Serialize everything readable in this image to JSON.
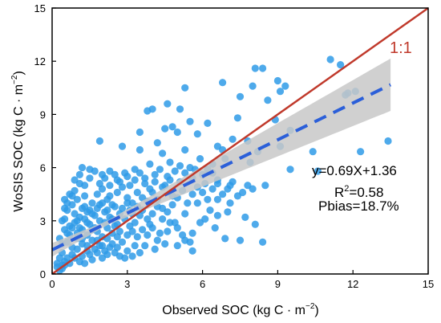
{
  "chart_data": {
    "type": "scatter",
    "xlabel": "Observed SOC (kg C · m",
    "xlabel_sup": "−2",
    "xlabel_tail": ")",
    "ylabel": "WoSIS SOC (kg C · m",
    "ylabel_sup": "−2",
    "ylabel_tail": ")",
    "xlim": [
      0,
      15
    ],
    "ylim": [
      0,
      15
    ],
    "xticks": [
      "0",
      "3",
      "6",
      "9",
      "12",
      "15"
    ],
    "yticks": [
      "0",
      "3",
      "6",
      "9",
      "12",
      "15"
    ],
    "grid": false,
    "identity_label": "1:1",
    "regression": {
      "slope": 0.69,
      "intercept": 1.36,
      "x_range": [
        0,
        13.5
      ]
    },
    "stats": {
      "equation": "y=0.69X+1.36",
      "r2_prefix": "R",
      "r2_sup": "2",
      "r2_value": "=0.58",
      "pbias": "Pbias=18.7%"
    },
    "colors": {
      "points": "#2f9be8",
      "identity_line": "#c0392b",
      "regression_line": "#2b5fd9",
      "confidence_band": "#c8c8c8",
      "identity_label": "#c0392b"
    },
    "points": [
      [
        11.1,
        12.1
      ],
      [
        11.5,
        11.8
      ],
      [
        11.8,
        10.2
      ],
      [
        11.7,
        10.1
      ],
      [
        13.4,
        7.5
      ],
      [
        12.3,
        6.9
      ],
      [
        12.1,
        10.3
      ],
      [
        8.1,
        11.6
      ],
      [
        8.4,
        11.6
      ],
      [
        9.0,
        10.9
      ],
      [
        9.3,
        10.6
      ],
      [
        9.1,
        10.3
      ],
      [
        8.0,
        10.6
      ],
      [
        7.5,
        10.0
      ],
      [
        6.8,
        10.8
      ],
      [
        5.3,
        10.5
      ],
      [
        4.0,
        9.3
      ],
      [
        3.8,
        9.2
      ],
      [
        4.6,
        9.6
      ],
      [
        5.1,
        9.3
      ],
      [
        7.4,
        8.8
      ],
      [
        8.6,
        9.8
      ],
      [
        8.9,
        8.7
      ],
      [
        9.5,
        8.1
      ],
      [
        7.8,
        7.5
      ],
      [
        6.6,
        7.2
      ],
      [
        6.8,
        7.0
      ],
      [
        7.2,
        7.6
      ],
      [
        5.8,
        7.9
      ],
      [
        5.0,
        8.0
      ],
      [
        4.5,
        8.2
      ],
      [
        5.5,
        8.6
      ],
      [
        6.2,
        8.5
      ],
      [
        4.8,
        8.3
      ],
      [
        3.5,
        8.0
      ],
      [
        1.9,
        7.5
      ],
      [
        2.8,
        7.2
      ],
      [
        3.5,
        7.0
      ],
      [
        4.2,
        7.4
      ],
      [
        4.4,
        6.8
      ],
      [
        5.3,
        7.0
      ],
      [
        5.9,
        6.5
      ],
      [
        6.4,
        6.2
      ],
      [
        6.9,
        6.5
      ],
      [
        7.9,
        6.3
      ],
      [
        8.5,
        5.0
      ],
      [
        9.5,
        5.9
      ],
      [
        9.1,
        7.2
      ],
      [
        8.2,
        6.9
      ],
      [
        10.6,
        5.8
      ],
      [
        10.4,
        6.9
      ],
      [
        1.2,
        6.0
      ],
      [
        1.5,
        5.9
      ],
      [
        2.0,
        5.6
      ],
      [
        2.3,
        5.8
      ],
      [
        2.6,
        5.3
      ],
      [
        3.0,
        5.5
      ],
      [
        3.3,
        5.9
      ],
      [
        3.7,
        5.4
      ],
      [
        4.1,
        5.6
      ],
      [
        4.6,
        5.5
      ],
      [
        5.1,
        5.2
      ],
      [
        5.6,
        5.4
      ],
      [
        6.1,
        5.1
      ],
      [
        6.6,
        5.3
      ],
      [
        7.1,
        5.0
      ],
      [
        7.6,
        4.6
      ],
      [
        3.9,
        6.2
      ],
      [
        4.7,
        6.3
      ],
      [
        5.5,
        6.0
      ],
      [
        6.2,
        5.9
      ],
      [
        6.6,
        4.2
      ],
      [
        7.1,
        4.0
      ],
      [
        7.7,
        3.2
      ],
      [
        7.5,
        1.9
      ],
      [
        8.4,
        1.8
      ],
      [
        8.1,
        2.8
      ],
      [
        6.5,
        2.6
      ],
      [
        6.9,
        2.0
      ],
      [
        6.3,
        3.6
      ],
      [
        5.8,
        4.0
      ],
      [
        5.3,
        3.4
      ],
      [
        4.9,
        2.9
      ],
      [
        5.6,
        2.3
      ],
      [
        5.5,
        1.8
      ],
      [
        5.6,
        1.3
      ],
      [
        4.6,
        2.4
      ],
      [
        4.2,
        1.9
      ],
      [
        3.9,
        2.8
      ],
      [
        4.4,
        3.7
      ],
      [
        4.8,
        4.4
      ],
      [
        3.3,
        1.6
      ],
      [
        2.6,
        1.5
      ],
      [
        2.2,
        1.1
      ],
      [
        2.9,
        0.9
      ],
      [
        3.5,
        1.2
      ],
      [
        0.5,
        4.2
      ],
      [
        0.7,
        4.5
      ],
      [
        0.9,
        4.7
      ],
      [
        1.1,
        5.1
      ],
      [
        1.3,
        4.4
      ],
      [
        0.6,
        3.6
      ],
      [
        0.8,
        3.9
      ],
      [
        1.0,
        4.2
      ],
      [
        1.2,
        3.7
      ],
      [
        1.4,
        3.5
      ],
      [
        1.6,
        4.0
      ],
      [
        1.8,
        4.5
      ],
      [
        2.0,
        4.8
      ],
      [
        2.2,
        4.2
      ],
      [
        2.4,
        3.9
      ],
      [
        2.6,
        4.6
      ],
      [
        2.8,
        4.9
      ],
      [
        3.0,
        4.3
      ],
      [
        3.2,
        4.0
      ],
      [
        3.4,
        4.6
      ],
      [
        3.6,
        3.6
      ],
      [
        3.8,
        4.1
      ],
      [
        4.0,
        4.6
      ],
      [
        4.2,
        4.2
      ],
      [
        4.4,
        4.9
      ],
      [
        0.5,
        2.5
      ],
      [
        0.7,
        2.2
      ],
      [
        0.9,
        2.9
      ],
      [
        1.1,
        2.6
      ],
      [
        1.3,
        3.1
      ],
      [
        1.5,
        2.8
      ],
      [
        1.7,
        3.3
      ],
      [
        1.9,
        3.0
      ],
      [
        2.1,
        3.5
      ],
      [
        2.3,
        3.2
      ],
      [
        2.5,
        2.7
      ],
      [
        2.7,
        3.4
      ],
      [
        2.9,
        3.1
      ],
      [
        3.1,
        3.6
      ],
      [
        3.3,
        2.9
      ],
      [
        3.5,
        3.3
      ],
      [
        0.6,
        1.8
      ],
      [
        0.8,
        1.5
      ],
      [
        1.0,
        2.0
      ],
      [
        1.2,
        1.7
      ],
      [
        1.4,
        2.2
      ],
      [
        1.6,
        1.9
      ],
      [
        1.8,
        2.4
      ],
      [
        2.0,
        2.1
      ],
      [
        2.2,
        2.6
      ],
      [
        2.4,
        2.3
      ],
      [
        0.4,
        1.2
      ],
      [
        0.6,
        0.9
      ],
      [
        0.8,
        1.1
      ],
      [
        1.0,
        1.4
      ],
      [
        1.2,
        1.0
      ],
      [
        1.4,
        1.3
      ],
      [
        1.6,
        0.8
      ],
      [
        1.8,
        1.2
      ],
      [
        2.0,
        0.9
      ],
      [
        0.2,
        0.4
      ],
      [
        0.3,
        0.2
      ],
      [
        0.4,
        0.5
      ],
      [
        0.5,
        3.1
      ],
      [
        0.9,
        3.4
      ],
      [
        1.3,
        3.8
      ],
      [
        1.7,
        2.6
      ],
      [
        2.1,
        2.9
      ],
      [
        2.5,
        3.8
      ],
      [
        0.7,
        2.7
      ],
      [
        1.1,
        3.2
      ],
      [
        1.5,
        3.6
      ],
      [
        1.9,
        3.9
      ],
      [
        2.3,
        4.4
      ],
      [
        2.7,
        2.4
      ],
      [
        3.1,
        2.7
      ],
      [
        0.3,
        2.0
      ],
      [
        0.4,
        3.0
      ],
      [
        0.5,
        3.7
      ],
      [
        0.6,
        4.0
      ],
      [
        0.8,
        4.4
      ],
      [
        1.0,
        3.0
      ],
      [
        1.2,
        2.5
      ],
      [
        1.4,
        2.9
      ],
      [
        1.6,
        3.4
      ],
      [
        1.8,
        3.7
      ],
      [
        2.0,
        4.0
      ],
      [
        2.2,
        3.6
      ],
      [
        2.4,
        3.1
      ],
      [
        2.6,
        2.8
      ],
      [
        2.8,
        3.7
      ],
      [
        3.0,
        4.0
      ],
      [
        3.2,
        3.4
      ],
      [
        3.4,
        3.8
      ],
      [
        3.6,
        4.3
      ],
      [
        3.8,
        3.1
      ],
      [
        4.0,
        3.4
      ],
      [
        4.2,
        3.8
      ],
      [
        4.4,
        3.1
      ],
      [
        4.6,
        3.5
      ],
      [
        4.8,
        3.9
      ],
      [
        5.0,
        4.3
      ],
      [
        5.2,
        4.7
      ],
      [
        5.4,
        4.0
      ],
      [
        5.6,
        4.5
      ],
      [
        5.8,
        4.9
      ],
      [
        6.0,
        4.6
      ],
      [
        6.2,
        4.2
      ],
      [
        6.4,
        4.8
      ],
      [
        6.6,
        5.1
      ],
      [
        6.8,
        4.5
      ],
      [
        7.0,
        4.8
      ],
      [
        7.2,
        5.2
      ],
      [
        7.4,
        4.4
      ],
      [
        7.8,
        5.0
      ],
      [
        8.0,
        4.8
      ],
      [
        0.9,
        5.3
      ],
      [
        1.1,
        5.6
      ],
      [
        1.3,
        5.0
      ],
      [
        1.5,
        5.4
      ],
      [
        1.7,
        5.8
      ],
      [
        1.9,
        5.1
      ],
      [
        2.1,
        5.4
      ],
      [
        2.3,
        5.0
      ],
      [
        2.5,
        5.6
      ],
      [
        2.7,
        5.2
      ],
      [
        2.9,
        5.7
      ],
      [
        3.1,
        5.0
      ],
      [
        3.3,
        5.3
      ],
      [
        3.5,
        5.7
      ],
      [
        3.7,
        5.1
      ],
      [
        3.9,
        4.8
      ],
      [
        4.1,
        5.2
      ],
      [
        4.3,
        5.9
      ],
      [
        4.5,
        5.0
      ],
      [
        4.7,
        5.3
      ],
      [
        4.9,
        5.8
      ],
      [
        5.1,
        6.1
      ],
      [
        5.3,
        5.7
      ],
      [
        5.7,
        5.9
      ],
      [
        6.0,
        5.6
      ],
      [
        6.4,
        5.7
      ],
      [
        0.4,
        1.7
      ],
      [
        0.6,
        2.3
      ],
      [
        0.8,
        2.6
      ],
      [
        1.0,
        2.3
      ],
      [
        1.2,
        2.0
      ],
      [
        1.4,
        1.6
      ],
      [
        1.6,
        2.5
      ],
      [
        1.8,
        1.9
      ],
      [
        2.0,
        1.6
      ],
      [
        2.2,
        2.0
      ],
      [
        2.4,
        1.7
      ],
      [
        2.6,
        2.1
      ],
      [
        2.8,
        1.8
      ],
      [
        3.0,
        2.2
      ],
      [
        3.2,
        2.4
      ],
      [
        3.4,
        2.1
      ],
      [
        3.6,
        2.5
      ],
      [
        3.8,
        2.2
      ],
      [
        4.0,
        2.6
      ],
      [
        4.3,
        2.3
      ],
      [
        4.7,
        2.9
      ],
      [
        5.0,
        2.6
      ],
      [
        5.2,
        2.2
      ],
      [
        5.9,
        2.9
      ],
      [
        6.1,
        3.1
      ],
      [
        6.6,
        3.3
      ],
      [
        7.0,
        3.5
      ],
      [
        0.5,
        0.7
      ],
      [
        0.7,
        0.6
      ],
      [
        0.9,
        0.9
      ],
      [
        1.1,
        0.7
      ],
      [
        1.3,
        0.6
      ],
      [
        1.5,
        1.1
      ],
      [
        1.7,
        1.4
      ],
      [
        1.9,
        1.6
      ],
      [
        2.1,
        1.3
      ],
      [
        2.3,
        1.5
      ],
      [
        2.5,
        1.2
      ],
      [
        2.7,
        1.0
      ],
      [
        3.0,
        1.3
      ],
      [
        3.2,
        1.0
      ],
      [
        3.7,
        1.6
      ],
      [
        4.1,
        1.4
      ],
      [
        4.5,
        1.7
      ],
      [
        5.0,
        1.6
      ],
      [
        5.3,
        1.9
      ],
      [
        0.3,
        0.9
      ],
      [
        0.2,
        0.6
      ],
      [
        0.4,
        0.3
      ],
      [
        0.5,
        0.5
      ]
    ]
  }
}
